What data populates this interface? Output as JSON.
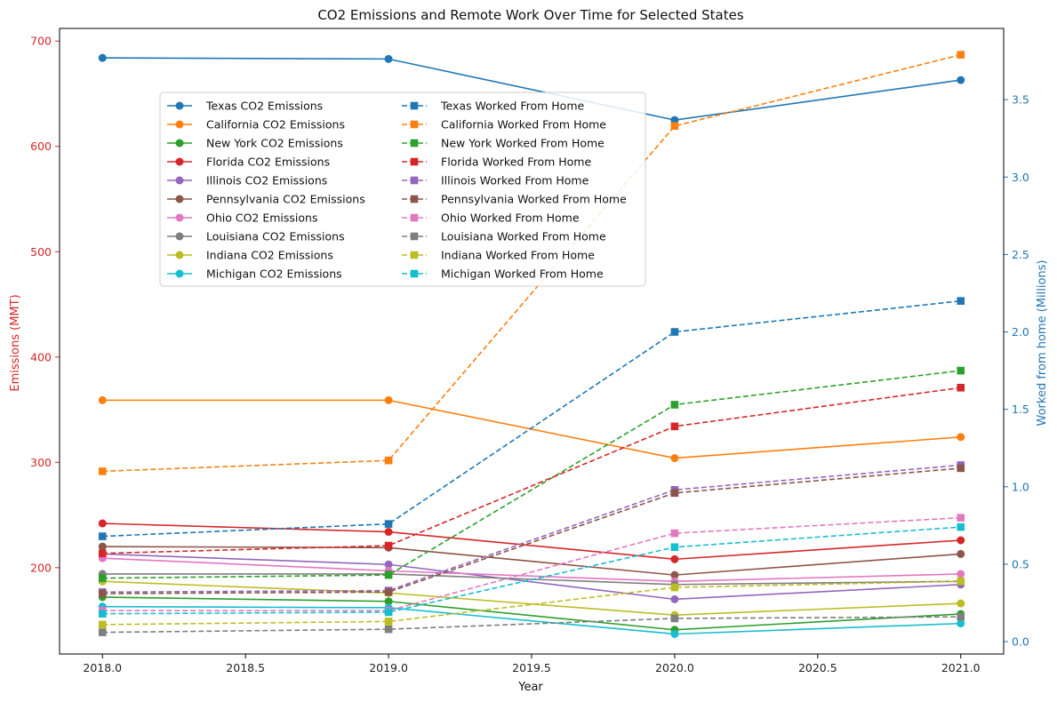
{
  "chart_data": {
    "type": "line",
    "title": "CO2 Emissions and Remote Work Over Time for Selected States",
    "xlabel": "Year",
    "ylabel_left": "Emissions (MMT)",
    "ylabel_right": "Worked from home (Millions)",
    "left_axis_color": "#d62728",
    "right_axis_color": "#1f77b4",
    "x": [
      2018,
      2019,
      2020,
      2021
    ],
    "xlim": [
      2017.85,
      2021.15
    ],
    "ylim_left": [
      118,
      712
    ],
    "ylim_right": [
      -0.08,
      3.96
    ],
    "x_ticks": [
      2018.0,
      2018.5,
      2019.0,
      2019.5,
      2020.0,
      2020.5,
      2021.0
    ],
    "x_tick_labels": [
      "2018.0",
      "2018.5",
      "2019.0",
      "2019.5",
      "2020.0",
      "2020.5",
      "2021.0"
    ],
    "y_ticks_left": [
      200,
      300,
      400,
      500,
      600,
      700
    ],
    "y_ticks_right": [
      0.0,
      0.5,
      1.0,
      1.5,
      2.0,
      2.5,
      3.0,
      3.5
    ],
    "y_tick_labels_right": [
      "0.0",
      "0.5",
      "1.0",
      "1.5",
      "2.0",
      "2.5",
      "3.0",
      "3.5"
    ],
    "grid": false,
    "legend_placement": "upper-left, two columns",
    "emissions_series": [
      {
        "name": "Texas CO2 Emissions",
        "color": "#1f77b4",
        "values": [
          684,
          683,
          625,
          663
        ]
      },
      {
        "name": "California CO2 Emissions",
        "color": "#ff7f0e",
        "values": [
          359,
          359,
          304,
          324
        ]
      },
      {
        "name": "New York CO2 Emissions",
        "color": "#2ca02c",
        "values": [
          172,
          168,
          141,
          156
        ]
      },
      {
        "name": "Florida CO2 Emissions",
        "color": "#d62728",
        "values": [
          242,
          234,
          208,
          226
        ]
      },
      {
        "name": "Illinois CO2 Emissions",
        "color": "#9467bd",
        "values": [
          213,
          203,
          170,
          184
        ]
      },
      {
        "name": "Pennsylvania CO2 Emissions",
        "color": "#8c564b",
        "values": [
          220,
          219,
          193,
          213
        ]
      },
      {
        "name": "Ohio CO2 Emissions",
        "color": "#e377c2",
        "values": [
          209,
          197,
          187,
          194
        ]
      },
      {
        "name": "Louisiana CO2 Emissions",
        "color": "#7f7f7f",
        "values": [
          194,
          194,
          184,
          187
        ]
      },
      {
        "name": "Indiana CO2 Emissions",
        "color": "#bcbd22",
        "values": [
          187,
          176,
          155,
          166
        ]
      },
      {
        "name": "Michigan CO2 Emissions",
        "color": "#17becf",
        "values": [
          163,
          162,
          137,
          147
        ]
      }
    ],
    "remote_series": [
      {
        "name": "Texas Worked From Home",
        "color": "#1f77b4",
        "values": [
          0.68,
          0.76,
          2.0,
          2.2
        ]
      },
      {
        "name": "California Worked From Home",
        "color": "#ff7f0e",
        "values": [
          1.1,
          1.17,
          3.33,
          3.79
        ]
      },
      {
        "name": "New York Worked From Home",
        "color": "#2ca02c",
        "values": [
          0.41,
          0.43,
          1.53,
          1.75
        ]
      },
      {
        "name": "Florida Worked From Home",
        "color": "#d62728",
        "values": [
          0.57,
          0.62,
          1.39,
          1.64
        ]
      },
      {
        "name": "Illinois Worked From Home",
        "color": "#9467bd",
        "values": [
          0.32,
          0.33,
          0.98,
          1.14
        ]
      },
      {
        "name": "Pennsylvania Worked From Home",
        "color": "#8c564b",
        "values": [
          0.31,
          0.32,
          0.96,
          1.12
        ]
      },
      {
        "name": "Ohio Worked From Home",
        "color": "#e377c2",
        "values": [
          0.2,
          0.2,
          0.7,
          0.8
        ]
      },
      {
        "name": "Louisiana Worked From Home",
        "color": "#7f7f7f",
        "values": [
          0.06,
          0.08,
          0.15,
          0.16
        ]
      },
      {
        "name": "Indiana Worked From Home",
        "color": "#bcbd22",
        "values": [
          0.11,
          0.13,
          0.35,
          0.39
        ]
      },
      {
        "name": "Michigan Worked From Home",
        "color": "#17becf",
        "values": [
          0.18,
          0.19,
          0.61,
          0.74
        ]
      }
    ]
  }
}
